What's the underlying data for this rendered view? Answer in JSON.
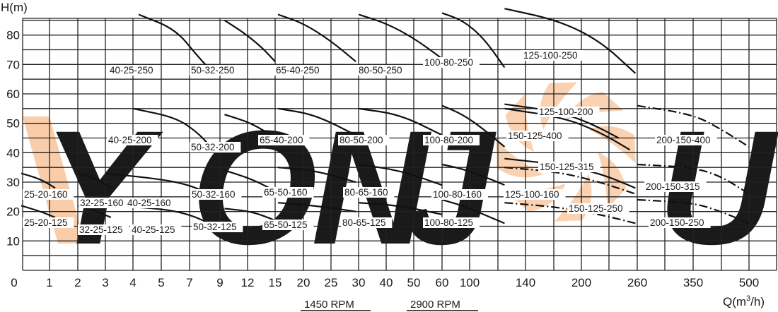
{
  "chart_data": {
    "type": "line",
    "ylabel": "H(m)",
    "xlabel": "Q(m",
    "xlabel_sup": "3",
    "xlabel_tail": "/h)",
    "ylim": [
      0,
      90
    ],
    "y_ticks": [
      "10",
      "20",
      "30",
      "40",
      "50",
      "60",
      "70",
      "80"
    ],
    "x_ticks": [
      "0",
      "1",
      "2",
      "3",
      "4",
      "5",
      "7",
      "9",
      "12",
      "15",
      "20",
      "25",
      "30",
      "40",
      "50",
      "60",
      "100",
      "140",
      "200",
      "260",
      "350",
      "500"
    ],
    "speed_labels": [
      "1450 RPM",
      "2900 RPM"
    ],
    "watermark": "YONJOU",
    "grid": true,
    "series": [
      {
        "name": "40-25-250",
        "points": [
          [
            4.2,
            87
          ],
          [
            6.0,
            82
          ],
          [
            7.5,
            73
          ],
          [
            8.4,
            68
          ]
        ],
        "style": "solid"
      },
      {
        "name": "50-32-250",
        "points": [
          [
            9.5,
            85
          ],
          [
            11.5,
            81
          ],
          [
            13.5,
            76
          ],
          [
            15.0,
            71
          ]
        ],
        "style": "solid"
      },
      {
        "name": "65-40-250",
        "points": [
          [
            15.5,
            87
          ],
          [
            20,
            84
          ],
          [
            25,
            78
          ],
          [
            29.5,
            71
          ]
        ],
        "style": "solid"
      },
      {
        "name": "80-50-250",
        "points": [
          [
            30,
            87
          ],
          [
            40,
            84
          ],
          [
            50,
            79
          ],
          [
            60,
            72
          ]
        ],
        "style": "solid"
      },
      {
        "name": "100-80-250",
        "points": [
          [
            60,
            87.5
          ],
          [
            90,
            85
          ],
          [
            110,
            79
          ],
          [
            125,
            69
          ]
        ],
        "style": "solid"
      },
      {
        "name": "125-100-250",
        "points": [
          [
            125,
            89
          ],
          [
            175,
            85
          ],
          [
            220,
            78
          ],
          [
            258,
            67
          ]
        ],
        "style": "solid"
      },
      {
        "name": "40-25-200",
        "points": [
          [
            4.0,
            55
          ],
          [
            6.0,
            52
          ],
          [
            7.5,
            47
          ],
          [
            8.4,
            42
          ]
        ],
        "style": "solid"
      },
      {
        "name": "50-32-200",
        "points": [
          [
            9.5,
            53
          ],
          [
            12.5,
            50
          ],
          [
            15.0,
            45
          ]
        ],
        "style": "solid"
      },
      {
        "name": "65-40-200",
        "points": [
          [
            15.5,
            55
          ],
          [
            22,
            53
          ],
          [
            29.5,
            46
          ]
        ],
        "style": "solid"
      },
      {
        "name": "80-50-200",
        "points": [
          [
            30,
            55
          ],
          [
            45,
            53
          ],
          [
            60,
            46
          ]
        ],
        "style": "solid"
      },
      {
        "name": "100-80-200",
        "points": [
          [
            60,
            56
          ],
          [
            90,
            53
          ],
          [
            110,
            48
          ],
          [
            125,
            42
          ]
        ],
        "style": "solid"
      },
      {
        "name": "125-100-200",
        "points": [
          [
            125,
            56.5
          ],
          [
            175,
            54
          ],
          [
            210,
            50
          ],
          [
            240,
            45
          ]
        ],
        "style": "solid"
      },
      {
        "name": "150-125-400",
        "points": [
          [
            125,
            55
          ],
          [
            180,
            52
          ],
          [
            220,
            47
          ],
          [
            252,
            41
          ]
        ],
        "style": "solid"
      },
      {
        "name": "200-150-400",
        "points": [
          [
            260,
            56
          ],
          [
            350,
            53
          ],
          [
            425,
            48
          ],
          [
            500,
            42
          ]
        ],
        "style": "dashdot"
      },
      {
        "name": "25-20-160",
        "points": [
          [
            0.2,
            33
          ],
          [
            0.75,
            31
          ],
          [
            1.2,
            28
          ]
        ],
        "style": "solid"
      },
      {
        "name": "32-25-160",
        "points": [
          [
            2.0,
            33
          ],
          [
            2.7,
            31
          ],
          [
            3.2,
            28
          ]
        ],
        "style": "solid"
      },
      {
        "name": "40-25-160",
        "points": [
          [
            3.0,
            33
          ],
          [
            5.0,
            31
          ],
          [
            7.0,
            29
          ],
          [
            8.3,
            26
          ]
        ],
        "style": "solid"
      },
      {
        "name": "50-32-160",
        "points": [
          [
            9.5,
            34
          ],
          [
            12.5,
            31
          ],
          [
            15.0,
            27
          ]
        ],
        "style": "solid"
      },
      {
        "name": "65-50-160",
        "points": [
          [
            15.5,
            35
          ],
          [
            22,
            34
          ],
          [
            29.5,
            30
          ]
        ],
        "style": "solid"
      },
      {
        "name": "80-65-160",
        "points": [
          [
            30,
            36
          ],
          [
            45,
            34
          ],
          [
            60,
            29
          ]
        ],
        "style": "solid"
      },
      {
        "name": "100-80-160",
        "points": [
          [
            60,
            36
          ],
          [
            90,
            34.5
          ],
          [
            115,
            31
          ],
          [
            125,
            29
          ]
        ],
        "style": "solid"
      },
      {
        "name": "125-100-160",
        "points": [
          [
            125,
            38
          ],
          [
            175,
            36
          ],
          [
            220,
            33
          ],
          [
            258,
            28
          ]
        ],
        "style": "solid"
      },
      {
        "name": "150-125-315",
        "points": [
          [
            125,
            35
          ],
          [
            175,
            33.5
          ],
          [
            220,
            30
          ],
          [
            258,
            26
          ]
        ],
        "style": "dashdot"
      },
      {
        "name": "200-150-315",
        "points": [
          [
            260,
            36
          ],
          [
            350,
            35
          ],
          [
            425,
            32
          ],
          [
            500,
            26
          ]
        ],
        "style": "dashdot"
      },
      {
        "name": "25-20-125",
        "points": [
          [
            0.2,
            22
          ],
          [
            0.75,
            20
          ],
          [
            1.2,
            18
          ]
        ],
        "style": "solid"
      },
      {
        "name": "32-25-125",
        "points": [
          [
            2.0,
            22
          ],
          [
            2.7,
            20
          ],
          [
            3.2,
            18
          ]
        ],
        "style": "solid"
      },
      {
        "name": "40-25-125",
        "points": [
          [
            3.0,
            22
          ],
          [
            5.0,
            21
          ],
          [
            7.0,
            19
          ],
          [
            8.3,
            16
          ]
        ],
        "style": "solid"
      },
      {
        "name": "50-32-125",
        "points": [
          [
            9.5,
            21
          ],
          [
            12.5,
            20
          ],
          [
            15.0,
            17
          ]
        ],
        "style": "solid"
      },
      {
        "name": "65-50-125",
        "points": [
          [
            15.5,
            23
          ],
          [
            22,
            22
          ],
          [
            29.5,
            20
          ]
        ],
        "style": "solid"
      },
      {
        "name": "80-65-125",
        "points": [
          [
            30,
            23
          ],
          [
            45,
            22
          ],
          [
            60,
            19
          ]
        ],
        "style": "solid"
      },
      {
        "name": "100-80-125",
        "points": [
          [
            60,
            24
          ],
          [
            90,
            22
          ],
          [
            115,
            18
          ],
          [
            125,
            16
          ]
        ],
        "style": "solid"
      },
      {
        "name": "150-125-250",
        "points": [
          [
            125,
            23
          ],
          [
            175,
            21.5
          ],
          [
            220,
            19
          ],
          [
            258,
            16
          ]
        ],
        "style": "dashdot"
      },
      {
        "name": "200-150-250",
        "points": [
          [
            260,
            24
          ],
          [
            350,
            23
          ],
          [
            425,
            20
          ],
          [
            500,
            16
          ]
        ],
        "style": "dashdot"
      }
    ],
    "colors": {
      "curve": "#111111",
      "grid": "#222222",
      "text": "#1a1a1a",
      "watermark_grey": "#dedede",
      "watermark_orange": "#f9cda9"
    }
  }
}
